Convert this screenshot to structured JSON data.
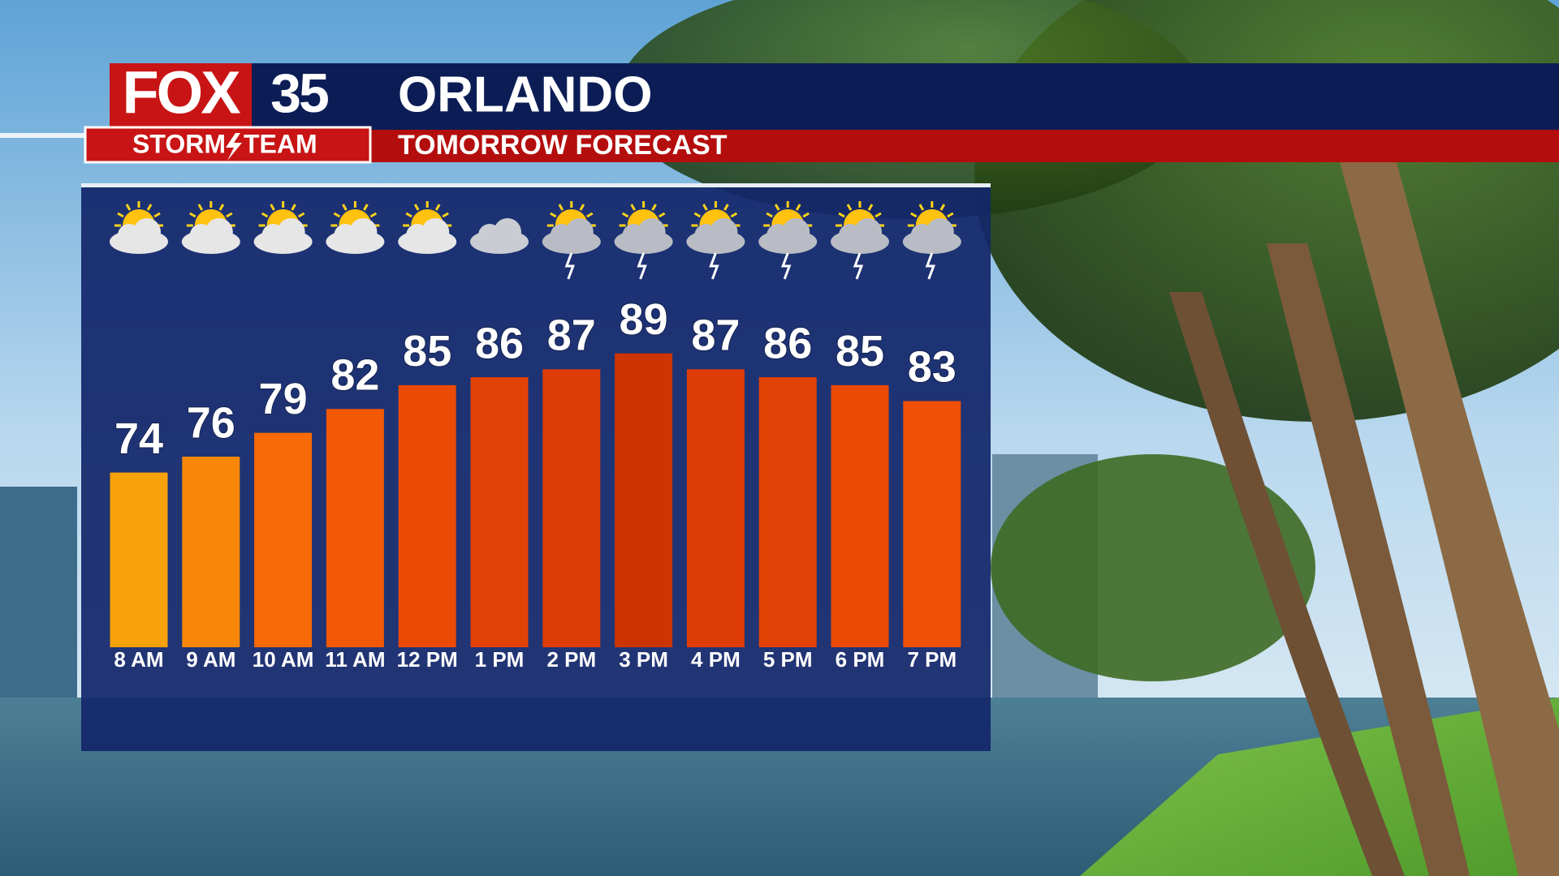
{
  "logo": {
    "brand": "FOX",
    "channel": "35",
    "team_left": "STORM",
    "team_right": "TEAM"
  },
  "chart_data": {
    "type": "bar",
    "title": "ORLANDO",
    "subtitle": "TOMORROW FORECAST",
    "categories": [
      "8 AM",
      "9 AM",
      "10 AM",
      "11 AM",
      "12 PM",
      "1 PM",
      "2 PM",
      "3 PM",
      "4 PM",
      "5 PM",
      "6 PM",
      "7 PM"
    ],
    "values": [
      74,
      76,
      79,
      82,
      85,
      86,
      87,
      89,
      87,
      86,
      85,
      83
    ],
    "colors": [
      "#f9a10a",
      "#f9870a",
      "#f86a06",
      "#f25805",
      "#ea4a06",
      "#e34206",
      "#de3c06",
      "#cc3503",
      "#de3c06",
      "#e34206",
      "#ea4a06",
      "#f05006"
    ],
    "ylim": [
      52,
      100
    ]
  }
}
